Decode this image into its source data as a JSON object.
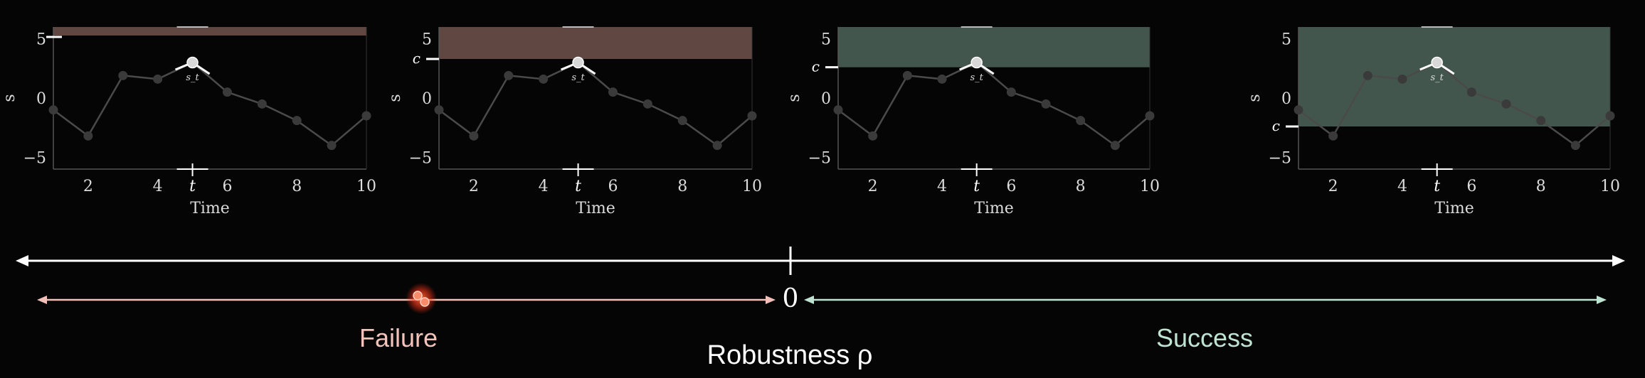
{
  "charts": [
    {
      "band": "failure",
      "c": 6.5,
      "c_label": ""
    },
    {
      "band": "failure",
      "c": 3.3,
      "c_label": "c"
    },
    {
      "band": "success",
      "c": 2.6,
      "c_label": "c"
    },
    {
      "band": "success",
      "c": -2.4,
      "c_label": "c"
    }
  ],
  "chart_data": [
    {
      "type": "line",
      "x": [
        1,
        2,
        3,
        4,
        5,
        6,
        7,
        8,
        9,
        10
      ],
      "y": [
        -1,
        -3.2,
        1.9,
        1.6,
        3,
        0.5,
        -0.5,
        -1.9,
        -4,
        -1.5
      ],
      "xlabel": "Time",
      "ylabel": "s",
      "ylim": [
        -6,
        6
      ],
      "xlim": [
        1,
        10
      ],
      "xticks": [
        "2",
        "4",
        "6",
        "8",
        "10"
      ],
      "yticks": [
        "−5",
        "0",
        "5"
      ],
      "t_label": "t",
      "point_label": "s_t",
      "band_top": 6,
      "threshold_label": ""
    },
    {
      "type": "line",
      "x": [
        1,
        2,
        3,
        4,
        5,
        6,
        7,
        8,
        9,
        10
      ],
      "y": [
        -1,
        -3.2,
        1.9,
        1.6,
        3,
        0.5,
        -0.5,
        -1.9,
        -4,
        -1.5
      ],
      "xlabel": "Time",
      "ylabel": "s",
      "ylim": [
        -6,
        6
      ],
      "xlim": [
        1,
        10
      ],
      "xticks": [
        "2",
        "4",
        "6",
        "8",
        "10"
      ],
      "yticks": [
        "5",
        "0",
        "−5"
      ],
      "t_label": "t",
      "point_label": "s_t",
      "band_top": 6,
      "threshold_label": "c"
    },
    {
      "type": "line",
      "x": [
        1,
        2,
        3,
        4,
        5,
        6,
        7,
        8,
        9,
        10
      ],
      "y": [
        -1,
        -3.2,
        1.9,
        1.6,
        3,
        0.5,
        -0.5,
        -1.9,
        -4,
        -1.5
      ],
      "xlabel": "Time",
      "ylabel": "s",
      "ylim": [
        -6,
        6
      ],
      "xlim": [
        1,
        10
      ],
      "xticks": [
        "2",
        "4",
        "6",
        "8",
        "10"
      ],
      "yticks": [
        "5",
        "0",
        "−5"
      ],
      "t_label": "t",
      "point_label": "s_t",
      "band_top": 6,
      "threshold_label": "c"
    },
    {
      "type": "line",
      "x": [
        1,
        2,
        3,
        4,
        5,
        6,
        7,
        8,
        9,
        10
      ],
      "y": [
        -1,
        -3.2,
        1.9,
        1.6,
        3,
        0.5,
        -0.5,
        -1.9,
        -4,
        -1.5
      ],
      "xlabel": "Time",
      "ylabel": "s",
      "ylim": [
        -6,
        6
      ],
      "xlim": [
        1,
        10
      ],
      "xticks": [
        "2",
        "4",
        "6",
        "8",
        "10"
      ],
      "yticks": [
        "5",
        "0",
        "−5"
      ],
      "t_label": "t",
      "point_label": "s_t",
      "band_top": 6,
      "threshold_label": "c"
    }
  ],
  "axis": {
    "zero_label": "0",
    "failure_label": "Failure",
    "success_label": "Success",
    "title": "Robustness ρ",
    "marker_value": -0.47
  },
  "colors": {
    "failure_band": "#6b4f48",
    "success_band": "#4a5f55",
    "failure_arrow": "#f2c0b8",
    "success_arrow": "#bfe3d3",
    "failure_text": "#f3c3ba",
    "success_text": "#bfe3d3",
    "marker": "#ff4a2a",
    "line": "#4a4a4a",
    "point": "#3a3a3a"
  }
}
